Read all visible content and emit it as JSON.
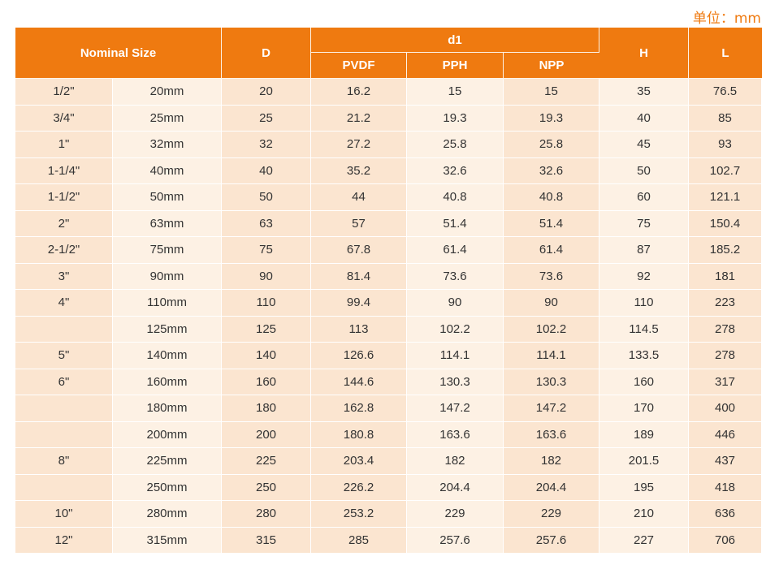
{
  "unit_label": "单位：mm",
  "headers": {
    "nominal_size": "Nominal Size",
    "d": "D",
    "d1": "d1",
    "pvdf": "PVDF",
    "pph": "PPH",
    "npp": "NPP",
    "h": "H",
    "l": "L"
  },
  "rows": [
    {
      "inch": "1/2\"",
      "mm": "20mm",
      "d": "20",
      "pvdf": "16.2",
      "pph": "15",
      "npp": "15",
      "h": "35",
      "l": "76.5"
    },
    {
      "inch": "3/4\"",
      "mm": "25mm",
      "d": "25",
      "pvdf": "21.2",
      "pph": "19.3",
      "npp": "19.3",
      "h": "40",
      "l": "85"
    },
    {
      "inch": "1\"",
      "mm": "32mm",
      "d": "32",
      "pvdf": "27.2",
      "pph": "25.8",
      "npp": "25.8",
      "h": "45",
      "l": "93"
    },
    {
      "inch": "1-1/4\"",
      "mm": "40mm",
      "d": "40",
      "pvdf": "35.2",
      "pph": "32.6",
      "npp": "32.6",
      "h": "50",
      "l": "102.7"
    },
    {
      "inch": "1-1/2\"",
      "mm": "50mm",
      "d": "50",
      "pvdf": "44",
      "pph": "40.8",
      "npp": "40.8",
      "h": "60",
      "l": "121.1"
    },
    {
      "inch": "2\"",
      "mm": "63mm",
      "d": "63",
      "pvdf": "57",
      "pph": "51.4",
      "npp": "51.4",
      "h": "75",
      "l": "150.4"
    },
    {
      "inch": "2-1/2\"",
      "mm": "75mm",
      "d": "75",
      "pvdf": "67.8",
      "pph": "61.4",
      "npp": "61.4",
      "h": "87",
      "l": "185.2"
    },
    {
      "inch": "3\"",
      "mm": "90mm",
      "d": "90",
      "pvdf": "81.4",
      "pph": "73.6",
      "npp": "73.6",
      "h": "92",
      "l": "181"
    },
    {
      "inch": "4\"",
      "mm": "110mm",
      "d": "110",
      "pvdf": "99.4",
      "pph": "90",
      "npp": "90",
      "h": "110",
      "l": "223"
    },
    {
      "inch": "",
      "mm": "125mm",
      "d": "125",
      "pvdf": "113",
      "pph": "102.2",
      "npp": "102.2",
      "h": "114.5",
      "l": "278"
    },
    {
      "inch": "5\"",
      "mm": "140mm",
      "d": "140",
      "pvdf": "126.6",
      "pph": "114.1",
      "npp": "114.1",
      "h": "133.5",
      "l": "278"
    },
    {
      "inch": "6\"",
      "mm": "160mm",
      "d": "160",
      "pvdf": "144.6",
      "pph": "130.3",
      "npp": "130.3",
      "h": "160",
      "l": "317"
    },
    {
      "inch": "",
      "mm": "180mm",
      "d": "180",
      "pvdf": "162.8",
      "pph": "147.2",
      "npp": "147.2",
      "h": "170",
      "l": "400"
    },
    {
      "inch": "",
      "mm": "200mm",
      "d": "200",
      "pvdf": "180.8",
      "pph": "163.6",
      "npp": "163.6",
      "h": "189",
      "l": "446"
    },
    {
      "inch": "8\"",
      "mm": "225mm",
      "d": "225",
      "pvdf": "203.4",
      "pph": "182",
      "npp": "182",
      "h": "201.5",
      "l": "437"
    },
    {
      "inch": "",
      "mm": "250mm",
      "d": "250",
      "pvdf": "226.2",
      "pph": "204.4",
      "npp": "204.4",
      "h": "195",
      "l": "418"
    },
    {
      "inch": "10\"",
      "mm": "280mm",
      "d": "280",
      "pvdf": "253.2",
      "pph": "229",
      "npp": "229",
      "h": "210",
      "l": "636"
    },
    {
      "inch": "12\"",
      "mm": "315mm",
      "d": "315",
      "pvdf": "285",
      "pph": "257.6",
      "npp": "257.6",
      "h": "227",
      "l": "706"
    }
  ]
}
